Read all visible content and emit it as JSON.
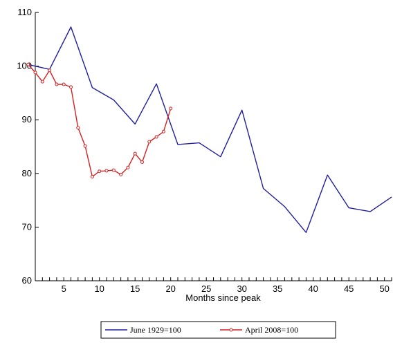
{
  "chart_data": {
    "type": "line",
    "title": "",
    "xlabel": "Months since peak",
    "ylabel": "",
    "xlim": [
      1,
      51
    ],
    "ylim": [
      60,
      110
    ],
    "x_tick_labels": [
      "5",
      "10",
      "15",
      "20",
      "25",
      "30",
      "35",
      "40",
      "45",
      "50"
    ],
    "y_tick_labels": [
      "60",
      "70",
      "80",
      "90",
      "100",
      "110"
    ],
    "grid": false,
    "legend_position": "bottom",
    "series": [
      {
        "name": "June 1929=100",
        "color": "#1f1fa0",
        "marker": "none",
        "points": [
          {
            "x": 0,
            "y": 100.3
          },
          {
            "x": 3,
            "y": 99.4
          },
          {
            "x": 6,
            "y": 107.3
          },
          {
            "x": 9,
            "y": 96.0
          },
          {
            "x": 12,
            "y": 93.7
          },
          {
            "x": 15,
            "y": 89.2
          },
          {
            "x": 18,
            "y": 96.7
          },
          {
            "x": 21,
            "y": 85.4
          },
          {
            "x": 24,
            "y": 85.7
          },
          {
            "x": 27,
            "y": 83.1
          },
          {
            "x": 30,
            "y": 91.8
          },
          {
            "x": 33,
            "y": 77.2
          },
          {
            "x": 36,
            "y": 73.8
          },
          {
            "x": 39,
            "y": 69.0
          },
          {
            "x": 42,
            "y": 79.7
          },
          {
            "x": 45,
            "y": 73.6
          },
          {
            "x": 48,
            "y": 72.9
          },
          {
            "x": 51,
            "y": 75.6
          }
        ]
      },
      {
        "name": "April 2008=100",
        "color": "#d42020",
        "marker": "circle",
        "points": [
          {
            "x": 0,
            "y": 100.3
          },
          {
            "x": 1,
            "y": 98.8
          },
          {
            "x": 2,
            "y": 97.1
          },
          {
            "x": 3,
            "y": 99.2
          },
          {
            "x": 4,
            "y": 96.6
          },
          {
            "x": 5,
            "y": 96.6
          },
          {
            "x": 6,
            "y": 96.1
          },
          {
            "x": 7,
            "y": 88.5
          },
          {
            "x": 8,
            "y": 85.1
          },
          {
            "x": 9,
            "y": 79.4
          },
          {
            "x": 10,
            "y": 80.4
          },
          {
            "x": 11,
            "y": 80.5
          },
          {
            "x": 12,
            "y": 80.6
          },
          {
            "x": 13,
            "y": 79.8
          },
          {
            "x": 14,
            "y": 81.1
          },
          {
            "x": 15,
            "y": 83.7
          },
          {
            "x": 16,
            "y": 82.1
          },
          {
            "x": 17,
            "y": 85.9
          },
          {
            "x": 18,
            "y": 86.8
          },
          {
            "x": 19,
            "y": 87.8
          },
          {
            "x": 20,
            "y": 92.1
          }
        ]
      }
    ]
  }
}
